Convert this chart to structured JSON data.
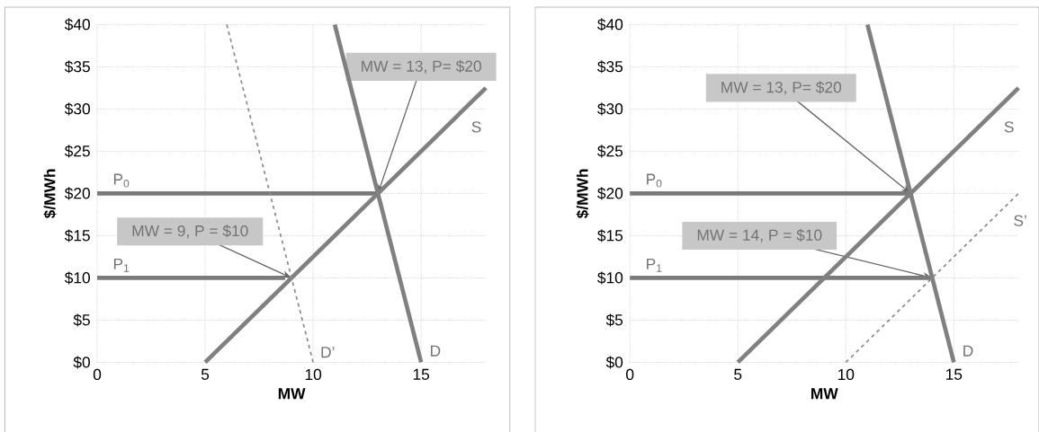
{
  "chart_data": [
    {
      "type": "line",
      "xlabel": "MW",
      "ylabel": "$/MWh",
      "xlim": [
        0,
        18
      ],
      "ylim": [
        0,
        40
      ],
      "xticks": [
        0,
        5,
        10,
        15
      ],
      "yticks": [
        {
          "value": 0,
          "label": "$0"
        },
        {
          "value": 5,
          "label": "$5"
        },
        {
          "value": 10,
          "label": "$10"
        },
        {
          "value": 15,
          "label": "$15"
        },
        {
          "value": 20,
          "label": "$20"
        },
        {
          "value": 25,
          "label": "$25"
        },
        {
          "value": 30,
          "label": "$30"
        },
        {
          "value": 35,
          "label": "$35"
        },
        {
          "value": 40,
          "label": "$40"
        }
      ],
      "grid": true,
      "series": [
        {
          "name": "P$_{0}$",
          "color": "#7a7a7a",
          "x": [
            0,
            13
          ],
          "values": [
            20,
            20
          ]
        },
        {
          "name": "P$_{1}$",
          "color": "#7a7a7a",
          "x": [
            0,
            8.7
          ],
          "values": [
            10,
            10
          ]
        },
        {
          "name": "S",
          "color": "#808080",
          "x": [
            5,
            18
          ],
          "values": [
            0,
            32.5
          ]
        },
        {
          "name": "D",
          "color": "#808080",
          "x": [
            11,
            15
          ],
          "values": [
            40,
            0
          ]
        },
        {
          "name": "D’",
          "color": "#8c8c8c",
          "x": [
            6,
            10
          ],
          "values": [
            40,
            0
          ],
          "line_style": "dashed"
        }
      ],
      "annotations": [
        {
          "text": "MW = 13, P= $20",
          "x": 13,
          "y": 20
        },
        {
          "text": "MW = 9, P = $10",
          "x": 9,
          "y": 10
        }
      ]
    },
    {
      "type": "line",
      "xlabel": "MW",
      "ylabel": "$/MWh",
      "xlim": [
        0,
        18
      ],
      "ylim": [
        0,
        40
      ],
      "xticks": [
        0,
        5,
        10,
        15
      ],
      "yticks": [
        {
          "value": 0,
          "label": "$0"
        },
        {
          "value": 5,
          "label": "$5"
        },
        {
          "value": 10,
          "label": "$10"
        },
        {
          "value": 15,
          "label": "$15"
        },
        {
          "value": 20,
          "label": "$20"
        },
        {
          "value": 25,
          "label": "$25"
        },
        {
          "value": 30,
          "label": "$30"
        },
        {
          "value": 35,
          "label": "$35"
        },
        {
          "value": 40,
          "label": "$40"
        }
      ],
      "grid": true,
      "series": [
        {
          "name": "P$_{0}$",
          "color": "#7a7a7a",
          "x": [
            0,
            13
          ],
          "values": [
            20,
            20
          ]
        },
        {
          "name": "P$_{1}$",
          "color": "#7a7a7a",
          "x": [
            0,
            14
          ],
          "values": [
            10,
            10
          ]
        },
        {
          "name": "S",
          "color": "#808080",
          "x": [
            5,
            18
          ],
          "values": [
            0,
            32.5
          ]
        },
        {
          "name": "D",
          "color": "#808080",
          "x": [
            11,
            15
          ],
          "values": [
            40,
            0
          ]
        },
        {
          "name": "S’",
          "color": "#8c8c8c",
          "x": [
            10,
            18
          ],
          "values": [
            0,
            20
          ],
          "line_style": "dashed"
        }
      ],
      "annotations": [
        {
          "text": "MW = 13, P= $20",
          "x": 13,
          "y": 20
        },
        {
          "text": "MW  = 14, P = $10",
          "x": 14,
          "y": 10
        }
      ]
    }
  ]
}
